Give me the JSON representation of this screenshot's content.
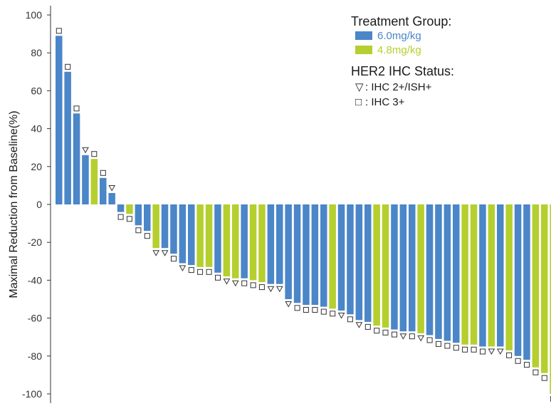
{
  "chart_data": {
    "type": "bar",
    "title": "",
    "xlabel": "",
    "ylabel": "Maximal Reduction from Baseline(%)",
    "ylim": [
      -105,
      105
    ],
    "yticks": [
      100,
      80,
      60,
      40,
      20,
      0,
      -20,
      -40,
      -60,
      -80,
      -100
    ],
    "grid": false,
    "legend": {
      "placement": "top-right",
      "treatment_title": "Treatment Group:",
      "treatment_items": [
        {
          "label": "6.0mg/kg",
          "group": "6.0mg/kg"
        },
        {
          "label": "4.8mg/kg",
          "group": "4.8mg/kg"
        }
      ],
      "her2_title": "HER2 IHC Status:",
      "her2_items": [
        {
          "symbol": "▽",
          "label": ": IHC 2+/ISH+",
          "status": "IHC 2+/ISH+"
        },
        {
          "symbol": "□",
          "label": ": IHC 3+",
          "status": "IHC 3+"
        }
      ]
    },
    "colors": {
      "6.0mg/kg": "#4a86c8",
      "4.8mg/kg": "#b5cf2e"
    },
    "bars": [
      {
        "value": 89,
        "group": "6.0mg/kg",
        "her2": "IHC 3+"
      },
      {
        "value": 70,
        "group": "6.0mg/kg",
        "her2": "IHC 3+"
      },
      {
        "value": 48,
        "group": "6.0mg/kg",
        "her2": "IHC 3+"
      },
      {
        "value": 26,
        "group": "6.0mg/kg",
        "her2": "IHC 2+/ISH+"
      },
      {
        "value": 24,
        "group": "4.8mg/kg",
        "her2": "IHC 3+"
      },
      {
        "value": 14,
        "group": "6.0mg/kg",
        "her2": "IHC 3+"
      },
      {
        "value": 6,
        "group": "6.0mg/kg",
        "her2": "IHC 2+/ISH+"
      },
      {
        "value": -4,
        "group": "6.0mg/kg",
        "her2": "IHC 3+"
      },
      {
        "value": -5,
        "group": "4.8mg/kg",
        "her2": "IHC 3+"
      },
      {
        "value": -11,
        "group": "6.0mg/kg",
        "her2": "IHC 3+"
      },
      {
        "value": -14,
        "group": "6.0mg/kg",
        "her2": "IHC 3+"
      },
      {
        "value": -23,
        "group": "4.8mg/kg",
        "her2": "IHC 2+/ISH+"
      },
      {
        "value": -23,
        "group": "6.0mg/kg",
        "her2": "IHC 2+/ISH+"
      },
      {
        "value": -26,
        "group": "6.0mg/kg",
        "her2": "IHC 3+"
      },
      {
        "value": -31,
        "group": "6.0mg/kg",
        "her2": "IHC 2+/ISH+"
      },
      {
        "value": -32,
        "group": "6.0mg/kg",
        "her2": "IHC 3+"
      },
      {
        "value": -33,
        "group": "4.8mg/kg",
        "her2": "IHC 3+"
      },
      {
        "value": -33,
        "group": "4.8mg/kg",
        "her2": "IHC 3+"
      },
      {
        "value": -36,
        "group": "6.0mg/kg",
        "her2": "IHC 3+"
      },
      {
        "value": -38,
        "group": "4.8mg/kg",
        "her2": "IHC 2+/ISH+"
      },
      {
        "value": -39,
        "group": "4.8mg/kg",
        "her2": "IHC 2+/ISH+"
      },
      {
        "value": -39,
        "group": "6.0mg/kg",
        "her2": "IHC 3+"
      },
      {
        "value": -40,
        "group": "4.8mg/kg",
        "her2": "IHC 3+"
      },
      {
        "value": -41,
        "group": "4.8mg/kg",
        "her2": "IHC 3+"
      },
      {
        "value": -42,
        "group": "6.0mg/kg",
        "her2": "IHC 2+/ISH+"
      },
      {
        "value": -42,
        "group": "6.0mg/kg",
        "her2": "IHC 2+/ISH+"
      },
      {
        "value": -50,
        "group": "6.0mg/kg",
        "her2": "IHC 2+/ISH+"
      },
      {
        "value": -52,
        "group": "6.0mg/kg",
        "her2": "IHC 3+"
      },
      {
        "value": -53,
        "group": "6.0mg/kg",
        "her2": "IHC 3+"
      },
      {
        "value": -53,
        "group": "6.0mg/kg",
        "her2": "IHC 3+"
      },
      {
        "value": -54,
        "group": "6.0mg/kg",
        "her2": "IHC 3+"
      },
      {
        "value": -55,
        "group": "4.8mg/kg",
        "her2": "IHC 3+"
      },
      {
        "value": -56,
        "group": "6.0mg/kg",
        "her2": "IHC 2+/ISH+"
      },
      {
        "value": -58,
        "group": "6.0mg/kg",
        "her2": "IHC 3+"
      },
      {
        "value": -61,
        "group": "6.0mg/kg",
        "her2": "IHC 2+/ISH+"
      },
      {
        "value": -62,
        "group": "6.0mg/kg",
        "her2": "IHC 3+"
      },
      {
        "value": -64,
        "group": "4.8mg/kg",
        "her2": "IHC 3+"
      },
      {
        "value": -65,
        "group": "4.8mg/kg",
        "her2": "IHC 3+"
      },
      {
        "value": -66,
        "group": "6.0mg/kg",
        "her2": "IHC 3+"
      },
      {
        "value": -67,
        "group": "6.0mg/kg",
        "her2": "IHC 2+/ISH+"
      },
      {
        "value": -67,
        "group": "6.0mg/kg",
        "her2": "IHC 3+"
      },
      {
        "value": -68,
        "group": "4.8mg/kg",
        "her2": "IHC 2+/ISH+"
      },
      {
        "value": -69,
        "group": "6.0mg/kg",
        "her2": "IHC 3+"
      },
      {
        "value": -71,
        "group": "6.0mg/kg",
        "her2": "IHC 3+"
      },
      {
        "value": -72,
        "group": "6.0mg/kg",
        "her2": "IHC 3+"
      },
      {
        "value": -73,
        "group": "6.0mg/kg",
        "her2": "IHC 3+"
      },
      {
        "value": -74,
        "group": "4.8mg/kg",
        "her2": "IHC 3+"
      },
      {
        "value": -74,
        "group": "4.8mg/kg",
        "her2": "IHC 3+"
      },
      {
        "value": -75,
        "group": "6.0mg/kg",
        "her2": "IHC 3+"
      },
      {
        "value": -75,
        "group": "4.8mg/kg",
        "her2": "IHC 2+/ISH+"
      },
      {
        "value": -75,
        "group": "6.0mg/kg",
        "her2": "IHC 2+/ISH+"
      },
      {
        "value": -77,
        "group": "4.8mg/kg",
        "her2": "IHC 3+"
      },
      {
        "value": -80,
        "group": "6.0mg/kg",
        "her2": "IHC 3+"
      },
      {
        "value": -82,
        "group": "6.0mg/kg",
        "her2": "IHC 3+"
      },
      {
        "value": -86,
        "group": "4.8mg/kg",
        "her2": "IHC 3+"
      },
      {
        "value": -89,
        "group": "4.8mg/kg",
        "her2": "IHC 3+"
      },
      {
        "value": -100,
        "group": "4.8mg/kg",
        "her2": "IHC 3+"
      }
    ]
  }
}
